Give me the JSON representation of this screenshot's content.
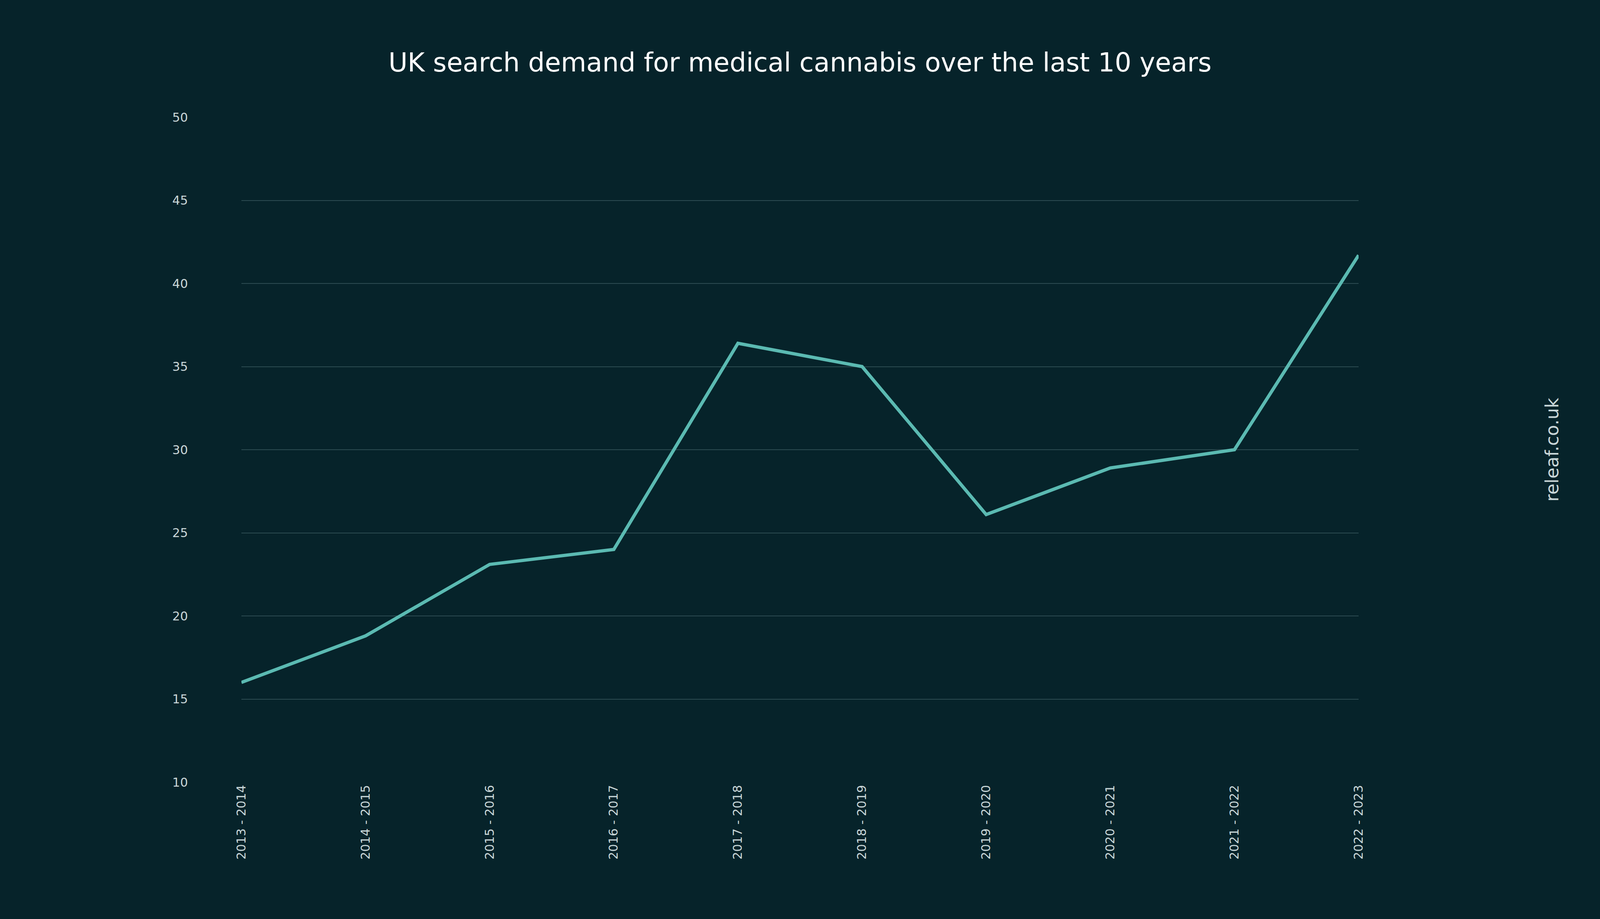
{
  "chart_data": {
    "type": "line",
    "title": "UK search demand for medical cannabis over the last 10 years",
    "annotation": "releaf.co.uk",
    "categories": [
      "2013 - 2014",
      "2014 - 2015",
      "2015 - 2016",
      "2016 - 2017",
      "2017 - 2018",
      "2018 - 2019",
      "2019 - 2020",
      "2020 - 2021",
      "2021 - 2022",
      "2022 - 2023"
    ],
    "values": [
      16,
      18.8,
      23.1,
      24,
      36.4,
      35,
      26.1,
      28.9,
      30,
      41.7
    ],
    "color": "#5bbab2",
    "ylim": [
      10,
      50
    ],
    "yticks": [
      10,
      15,
      20,
      25,
      30,
      35,
      40,
      45,
      50
    ],
    "grid": true
  }
}
